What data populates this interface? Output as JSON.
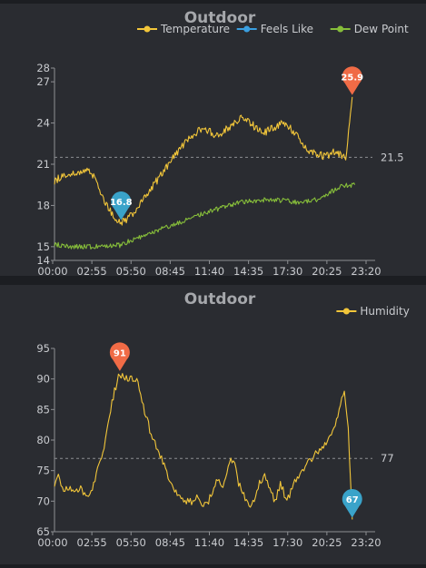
{
  "chart_data": [
    {
      "type": "line",
      "title": "Outdoor",
      "legend": {
        "position": "top-right"
      },
      "series": [
        {
          "name": "Temperature",
          "color": "#f2c63a"
        },
        {
          "name": "Feels Like",
          "color": "#3a9fe0"
        },
        {
          "name": "Dew Point",
          "color": "#86bd3a"
        }
      ],
      "x_ticks": [
        "00:00",
        "02:55",
        "05:50",
        "08:45",
        "11:40",
        "14:35",
        "17:30",
        "20:25",
        "23:20"
      ],
      "y_ticks": [
        14,
        15,
        18,
        21,
        24,
        27,
        28
      ],
      "ylim": [
        14,
        28
      ],
      "xlim_hours": [
        0,
        24
      ],
      "temperature_points": [
        [
          0,
          19.8
        ],
        [
          0.5,
          20.1
        ],
        [
          1,
          20.3
        ],
        [
          1.5,
          20.4
        ],
        [
          2,
          20.5
        ],
        [
          2.5,
          20.5
        ],
        [
          3,
          20.2
        ],
        [
          3.3,
          19.6
        ],
        [
          3.6,
          18.9
        ],
        [
          3.9,
          18.2
        ],
        [
          4.2,
          17.7
        ],
        [
          4.5,
          17.2
        ],
        [
          4.8,
          16.9
        ],
        [
          5.1,
          16.8
        ],
        [
          5.5,
          17.0
        ],
        [
          6,
          17.4
        ],
        [
          6.5,
          18.0
        ],
        [
          7,
          18.7
        ],
        [
          7.5,
          19.4
        ],
        [
          8,
          20.0
        ],
        [
          8.5,
          20.7
        ],
        [
          9,
          21.4
        ],
        [
          9.5,
          22.0
        ],
        [
          10,
          22.6
        ],
        [
          10.5,
          23.0
        ],
        [
          11,
          23.4
        ],
        [
          11.5,
          23.6
        ],
        [
          12,
          23.3
        ],
        [
          12.5,
          23.1
        ],
        [
          13,
          23.4
        ],
        [
          13.5,
          23.8
        ],
        [
          14,
          24.2
        ],
        [
          14.5,
          24.4
        ],
        [
          15,
          24.0
        ],
        [
          15.5,
          23.6
        ],
        [
          16,
          23.3
        ],
        [
          16.5,
          23.5
        ],
        [
          17,
          23.8
        ],
        [
          17.5,
          24.1
        ],
        [
          18,
          23.7
        ],
        [
          18.5,
          23.2
        ],
        [
          19,
          22.5
        ],
        [
          19.5,
          22.0
        ],
        [
          20,
          21.8
        ],
        [
          20.5,
          21.6
        ],
        [
          21,
          21.7
        ],
        [
          21.5,
          21.9
        ],
        [
          22,
          21.6
        ],
        [
          22.3,
          21.5
        ],
        [
          22.6,
          23.8
        ],
        [
          22.8,
          25.9
        ]
      ],
      "dewpoint_points": [
        [
          0,
          15.2
        ],
        [
          1,
          15.0
        ],
        [
          2,
          15.0
        ],
        [
          3,
          15.0
        ],
        [
          4,
          15.1
        ],
        [
          5,
          15.1
        ],
        [
          6,
          15.5
        ],
        [
          7,
          15.8
        ],
        [
          8,
          16.2
        ],
        [
          9,
          16.6
        ],
        [
          10,
          16.9
        ],
        [
          11,
          17.3
        ],
        [
          12,
          17.6
        ],
        [
          13,
          17.9
        ],
        [
          14,
          18.2
        ],
        [
          15,
          18.3
        ],
        [
          16,
          18.4
        ],
        [
          17,
          18.4
        ],
        [
          18,
          18.3
        ],
        [
          19,
          18.2
        ],
        [
          20,
          18.4
        ],
        [
          21,
          18.9
        ],
        [
          22,
          19.4
        ],
        [
          23,
          19.5
        ]
      ],
      "average": 21.5,
      "average_label": "21.5",
      "max_label": "25.9",
      "max_point": [
        22.8,
        25.9
      ],
      "min_label": "16.8",
      "min_point": [
        5.1,
        16.8
      ]
    },
    {
      "type": "line",
      "title": "Outdoor",
      "legend": {
        "position": "top-right"
      },
      "series": [
        {
          "name": "Humidity",
          "color": "#f2c63a"
        }
      ],
      "x_ticks": [
        "00:00",
        "02:55",
        "05:50",
        "08:45",
        "11:40",
        "14:35",
        "17:30",
        "20:25",
        "23:20"
      ],
      "y_ticks": [
        65,
        70,
        75,
        80,
        85,
        90,
        95
      ],
      "ylim": [
        65,
        95
      ],
      "xlim_hours": [
        0,
        24
      ],
      "humidity_points": [
        [
          0,
          73
        ],
        [
          0.3,
          75
        ],
        [
          0.6,
          72
        ],
        [
          1,
          72
        ],
        [
          1.5,
          72
        ],
        [
          2,
          72
        ],
        [
          2.5,
          71
        ],
        [
          2.9,
          72
        ],
        [
          3.3,
          75
        ],
        [
          3.8,
          79
        ],
        [
          4.2,
          84
        ],
        [
          4.6,
          88
        ],
        [
          5,
          91
        ],
        [
          5.3,
          90
        ],
        [
          5.8,
          90
        ],
        [
          6.3,
          90
        ],
        [
          6.6,
          87
        ],
        [
          7,
          84
        ],
        [
          7.4,
          81
        ],
        [
          7.8,
          79
        ],
        [
          8.2,
          77
        ],
        [
          8.7,
          74
        ],
        [
          9.2,
          72
        ],
        [
          9.6,
          71
        ],
        [
          10,
          70
        ],
        [
          10.5,
          70
        ],
        [
          11,
          71
        ],
        [
          11.3,
          69
        ],
        [
          11.8,
          70
        ],
        [
          12.2,
          72
        ],
        [
          12.6,
          74
        ],
        [
          12.9,
          72
        ],
        [
          13.3,
          76
        ],
        [
          13.7,
          77
        ],
        [
          14.1,
          73
        ],
        [
          14.5,
          71
        ],
        [
          14.9,
          69
        ],
        [
          15.3,
          70
        ],
        [
          15.7,
          73
        ],
        [
          16.1,
          74
        ],
        [
          16.5,
          72
        ],
        [
          16.9,
          70
        ],
        [
          17.3,
          73
        ],
        [
          17.8,
          70
        ],
        [
          18.2,
          72
        ],
        [
          18.6,
          74
        ],
        [
          18.9,
          75
        ],
        [
          19.3,
          76
        ],
        [
          19.7,
          77
        ],
        [
          20.1,
          78
        ],
        [
          20.5,
          79
        ],
        [
          21,
          80
        ],
        [
          21.4,
          82
        ],
        [
          21.8,
          85
        ],
        [
          22.2,
          88
        ],
        [
          22.5,
          82
        ],
        [
          22.8,
          67
        ]
      ],
      "average": 77,
      "average_label": "77",
      "max_label": "91",
      "max_point": [
        5,
        91
      ],
      "min_label": "67",
      "min_point": [
        22.8,
        67
      ]
    }
  ]
}
